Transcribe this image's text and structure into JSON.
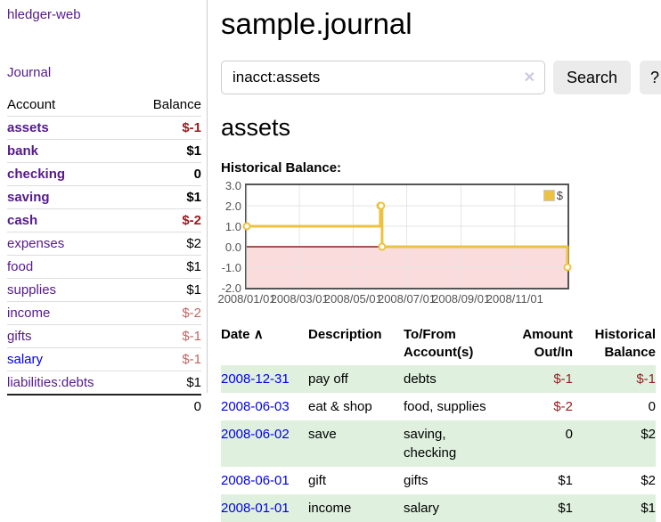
{
  "theme": {
    "link-purple": "#551a8b",
    "link-blue": "#0000e6",
    "neg-strong": "#9a1c20",
    "neg-soft": "#c06464",
    "row-green": "#dff0df",
    "btn-gray": "#ebebeb",
    "divider": "#cccccc",
    "muted": "#545454"
  },
  "sidebar": {
    "brand": "hledger-web",
    "nav": {
      "journal": "Journal"
    },
    "accounts_table": {
      "headers": {
        "account": "Account",
        "balance": "Balance"
      },
      "rows": [
        {
          "name": "assets",
          "balance": "$-1",
          "depth": 1,
          "in_query": true,
          "negative": true
        },
        {
          "name": "bank",
          "balance": "$1",
          "depth": 2,
          "in_query": true
        },
        {
          "name": "checking",
          "balance": "0",
          "depth": 3,
          "in_query": true
        },
        {
          "name": "saving",
          "balance": "$1",
          "depth": 3,
          "in_query": true
        },
        {
          "name": "cash",
          "balance": "$-2",
          "depth": 2,
          "in_query": true,
          "negative": true
        },
        {
          "name": "expenses",
          "balance": "$2",
          "depth": 1
        },
        {
          "name": "food",
          "balance": "$1",
          "depth": 2
        },
        {
          "name": "supplies",
          "balance": "$1",
          "depth": 2
        },
        {
          "name": "income",
          "balance": "$-2",
          "depth": 1,
          "negative": true
        },
        {
          "name": "gifts",
          "balance": "$-1",
          "depth": 2,
          "negative": true
        },
        {
          "name": "salary",
          "balance": "$-1",
          "depth": 2,
          "negative": true,
          "unvisited": true
        },
        {
          "name": "liabilities:debts",
          "balance": "$1",
          "depth": 1
        }
      ],
      "total": "0"
    }
  },
  "main": {
    "title": "sample.journal",
    "search": {
      "value": "inacct:assets",
      "clear_icon": "✕",
      "button": "Search",
      "help_button": "?"
    },
    "account_heading": "assets"
  },
  "chart_data": {
    "type": "line",
    "step": true,
    "title": "Historical Balance:",
    "series": [
      {
        "name": "$",
        "color": "#edc240",
        "points": [
          [
            "2008-01-01",
            1
          ],
          [
            "2008-06-01",
            2
          ],
          [
            "2008-06-02",
            2
          ],
          [
            "2008-06-03",
            0
          ],
          [
            "2008-12-31",
            -1
          ]
        ]
      }
    ],
    "x_range": [
      "2008-01-01",
      "2008-12-31"
    ],
    "ylim": [
      -2,
      3
    ],
    "y_ticks": [
      3,
      2,
      1,
      0,
      -1,
      -2
    ],
    "x_ticks": [
      {
        "date": "2008-01-01",
        "label": "2008/01/01"
      },
      {
        "date": "2008-03-01",
        "label": "2008/03/01"
      },
      {
        "date": "2008-05-01",
        "label": "2008/05/01"
      },
      {
        "date": "2008-07-01",
        "label": "2008/07/01"
      },
      {
        "date": "2008-09-01",
        "label": "2008/09/01"
      },
      {
        "date": "2008-11-01",
        "label": "2008/11/01"
      }
    ],
    "grid": true,
    "legend_position": "top-right",
    "colors": {
      "negative_region": "#fadcdc",
      "zero_line": "#8a1f1f",
      "grid": "#e6e6e6",
      "border": "#545454"
    }
  },
  "register_table": {
    "headers": {
      "date": "Date",
      "description": "Description",
      "accounts": "To/From Account(s)",
      "amount": "Amount Out/In",
      "balance": "Historical Balance"
    },
    "sort_indicator": "∧",
    "rows": [
      {
        "date": "2008-12-31",
        "description": "pay off",
        "accounts": "debts",
        "amount": "$-1",
        "amount_negative": true,
        "balance": "$-1",
        "balance_negative": true
      },
      {
        "date": "2008-06-03",
        "description": "eat & shop",
        "accounts": "food, supplies",
        "amount": "$-2",
        "amount_negative": true,
        "balance": "0"
      },
      {
        "date": "2008-06-02",
        "description": "save",
        "accounts": "saving, checking",
        "amount": "0",
        "balance": "$2"
      },
      {
        "date": "2008-06-01",
        "description": "gift",
        "accounts": "gifts",
        "amount": "$1",
        "balance": "$2"
      },
      {
        "date": "2008-01-01",
        "description": "income",
        "accounts": "salary",
        "amount": "$1",
        "balance": "$1"
      }
    ]
  }
}
